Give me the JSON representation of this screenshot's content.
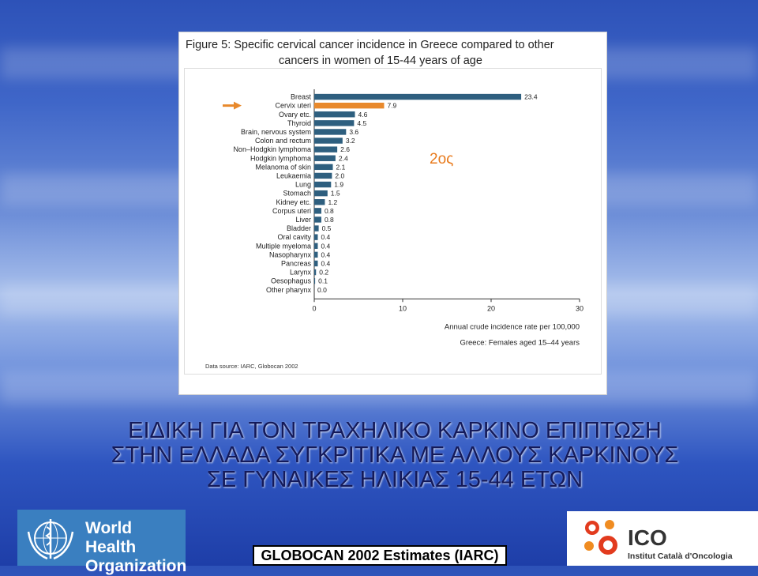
{
  "figure": {
    "title_line1": "Figure 5: Specific cervical cancer incidence in Greece compared to other",
    "title_line2": "cancers in women of 15-44 years of age",
    "data_source": "Data source: IARC, Globocan 2002",
    "annotation": "2ος"
  },
  "chart_data": {
    "type": "bar",
    "orientation": "horizontal",
    "categories": [
      "Breast",
      "Cervix uteri",
      "Ovary etc.",
      "Thyroid",
      "Brain, nervous system",
      "Colon and rectum",
      "Non–Hodgkin lymphoma",
      "Hodgkin lymphoma",
      "Melanoma of skin",
      "Leukaemia",
      "Lung",
      "Stomach",
      "Kidney etc.",
      "Corpus uteri",
      "Liver",
      "Bladder",
      "Oral cavity",
      "Multiple myeloma",
      "Nasopharynx",
      "Pancreas",
      "Larynx",
      "Oesophagus",
      "Other pharynx"
    ],
    "values": [
      23.4,
      7.9,
      4.6,
      4.5,
      3.6,
      3.2,
      2.6,
      2.4,
      2.1,
      2.0,
      1.9,
      1.5,
      1.2,
      0.8,
      0.8,
      0.5,
      0.4,
      0.4,
      0.4,
      0.4,
      0.2,
      0.1,
      0.0
    ],
    "value_labels": [
      "23.4",
      "7.9",
      "4.6",
      "4.5",
      "3.6",
      "3.2",
      "2.6",
      "2.4",
      "2.1",
      "2.0",
      "1.9",
      "1.5",
      "1.2",
      "0.8",
      "0.8",
      "0.5",
      "0.4",
      "0.4",
      "0.4",
      "0.4",
      "0.2",
      "0.1",
      "0.0"
    ],
    "highlight_category": "Cervix uteri",
    "xlim": [
      0,
      30
    ],
    "xticks": [
      "0",
      "10",
      "20",
      "30"
    ],
    "xlabel": "Annual crude incidence rate per 100,000",
    "xlabel2": "Greece: Females aged 15–44 years",
    "colors": {
      "bar": "#2e5f7f",
      "highlight": "#e8892c",
      "arrow": "#e8892c"
    }
  },
  "slide_title": {
    "line1": "ΕΙΔΙΚΗ ΓΙΑ ΤΟΝ ΤΡΑΧΗΛΙΚΟ ΚΑΡΚΙΝΟ ΕΠΙΠΤΩΣΗ",
    "line2": "ΣΤΗΝ ΕΛΛΑΔΑ ΣΥΓΚΡΙΤΙΚΑ ΜΕ ΑΛΛΟΥΣ ΚΑΡΚΙΝΟΥΣ",
    "line3": "ΣΕ ΓΥΝΑΙΚΕΣ ΗΛΙΚΙΑΣ 15-44 ΕΤΩΝ"
  },
  "logos": {
    "who_line1": "World Health",
    "who_line2": "Organization",
    "globocan": "GLOBOCAN 2002 Estimates (IARC)",
    "ico_name": "ICO",
    "ico_sub": "Institut Català d'Oncologia"
  }
}
